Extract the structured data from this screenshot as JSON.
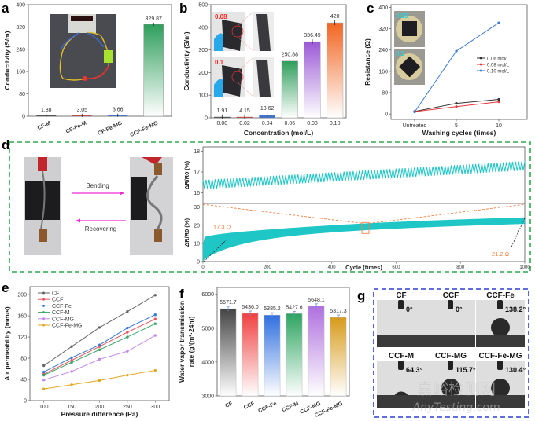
{
  "panel_labels": {
    "a": "a",
    "b": "b",
    "c": "c",
    "d": "d",
    "e": "e",
    "f": "f",
    "g": "g"
  },
  "chart_data": [
    {
      "id": "a",
      "type": "bar",
      "categories": [
        "CF-M",
        "CF-Fe-M",
        "CF-Fe-MG",
        "CCF-Fe-MG"
      ],
      "values": [
        1.88,
        3.05,
        3.66,
        329.87
      ],
      "value_labels": [
        "1.88",
        "3.05",
        "3.66",
        "329.87"
      ],
      "colors": [
        "#555555",
        "#c0504d",
        "#4472c4",
        "#2e9e5b"
      ],
      "ylabel": "Conductivity (S/m)",
      "ylim": [
        0,
        400
      ],
      "yticks": [
        "0",
        "80",
        "160",
        "240",
        "320",
        "400"
      ],
      "inset": "photo of LED circuit"
    },
    {
      "id": "b",
      "type": "bar",
      "categories": [
        "0.00",
        "0.02",
        "0.04",
        "0.06",
        "0.08",
        "0.10"
      ],
      "values": [
        1.91,
        4.15,
        13.62,
        250.88,
        336.49,
        420
      ],
      "value_labels": [
        "1.91",
        "4.15",
        "13.62",
        "250.88",
        "336.49",
        "420"
      ],
      "colors": [
        "#555555",
        "#c0504d",
        "#4472c4",
        "#2e9e5b",
        "#9b59d6",
        "#f26522"
      ],
      "xlabel": "Concentration (mol/L)",
      "ylabel": "Conductivity (S/m)",
      "ylim": [
        0,
        500
      ],
      "yticks": [
        "0",
        "100",
        "200",
        "300",
        "400",
        "500"
      ],
      "inset_labels": [
        "0.08",
        "0.1"
      ]
    },
    {
      "id": "c",
      "type": "line",
      "categories": [
        "Untreated",
        "5",
        "10"
      ],
      "series": [
        {
          "name": "0.06 mol/L",
          "values": [
            10,
            40,
            55
          ],
          "color": "#333333"
        },
        {
          "name": "0.08 mol/L",
          "values": [
            9,
            28,
            46
          ],
          "color": "#e8383d"
        },
        {
          "name": "0.10 mol/L",
          "values": [
            8,
            236,
            342
          ],
          "color": "#3a7bd5"
        }
      ],
      "xlabel": "Washing cycles (times)",
      "ylabel": "Resistance (Ω)",
      "ylim": [
        -20,
        410
      ],
      "yticks": [
        "0",
        "80",
        "160",
        "240",
        "320",
        "400"
      ],
      "inset_labels": [
        "0.08",
        "0.1"
      ]
    },
    {
      "id": "d",
      "type": "line",
      "bend_label": "Bending",
      "recover_label": "Recovering",
      "top": {
        "ylabel": "ΔR/R0 (%)",
        "ylim": [
          15.5,
          18.2
        ],
        "yticks": [
          "16",
          "17",
          "18"
        ],
        "start": 16.4,
        "end": 17.3
      },
      "bottom": {
        "ylabel": "ΔR/R0 (%)",
        "ylim": [
          0,
          32
        ],
        "yticks": [
          "0",
          "10",
          "20",
          "30"
        ]
      },
      "xlabel": "Cycle (times)",
      "xlim": [
        0,
        1000
      ],
      "xticks": [
        "0",
        "200",
        "400",
        "600",
        "800",
        "1000"
      ],
      "annotations": [
        "17.3 Ω",
        "21.2 Ω"
      ],
      "color": "#1fc6c6"
    },
    {
      "id": "e",
      "type": "line",
      "x": [
        100,
        150,
        200,
        250,
        300
      ],
      "series": [
        {
          "name": "CF",
          "values": [
            66,
            102,
            138,
            168,
            199
          ],
          "color": "#666666"
        },
        {
          "name": "CCF",
          "values": [
            50,
            76,
            102,
            129,
            154
          ],
          "color": "#e8585d"
        },
        {
          "name": "CCF-Fe",
          "values": [
            54,
            81,
            105,
            137,
            162
          ],
          "color": "#3a7bd5"
        },
        {
          "name": "CCF-M",
          "values": [
            48,
            72,
            96,
            120,
            145
          ],
          "color": "#3aa569"
        },
        {
          "name": "CCF-MG",
          "values": [
            39,
            55,
            78,
            93,
            123
          ],
          "color": "#c08ae8"
        },
        {
          "name": "CCF-Fe-MG",
          "values": [
            22,
            30,
            38,
            48,
            57
          ],
          "color": "#e0a820"
        }
      ],
      "xlabel": "Pressure difference (Pa)",
      "ylabel": "Air permeability (mm/s)",
      "ylim": [
        0,
        215
      ],
      "xlim": [
        75,
        325
      ],
      "yticks": [
        "0",
        "40",
        "80",
        "120",
        "160",
        "200"
      ],
      "xticks": [
        "100",
        "150",
        "200",
        "250",
        "300"
      ]
    },
    {
      "id": "f",
      "type": "bar",
      "categories": [
        "CF",
        "CCF",
        "CCF-Fe",
        "CCF-M",
        "CCF-MG",
        "CCF-Fe-MG"
      ],
      "values": [
        5571.7,
        5436.0,
        5385.2,
        5427.6,
        5648.1,
        5317.3
      ],
      "value_labels": [
        "5571.7",
        "5436.0",
        "5385.2",
        "5427.6",
        "5648.1",
        "5317.3"
      ],
      "colors": [
        "#444444",
        "#f04040",
        "#2f6fe0",
        "#2ea460",
        "#b070e0",
        "#d89a1a"
      ],
      "ylabel_line1": "Water vapor transmission",
      "ylabel_line2": "rate (g/(m²·24h))",
      "ylim": [
        3000,
        6200
      ],
      "yticks": [
        "3000",
        "4000",
        "5000",
        "6000"
      ]
    },
    {
      "id": "g",
      "type": "table",
      "samples": [
        {
          "name": "CF",
          "angle": "0°",
          "deg": 0
        },
        {
          "name": "CCF",
          "angle": "0°",
          "deg": 0
        },
        {
          "name": "CCF-Fe",
          "angle": "138.2°",
          "deg": 138.2
        },
        {
          "name": "CCF-M",
          "angle": "64.3°",
          "deg": 64.3
        },
        {
          "name": "CCF-MG",
          "angle": "115.7°",
          "deg": 115.7
        },
        {
          "name": "CCF-Fe-MG",
          "angle": "130.4°",
          "deg": 130.4
        }
      ]
    }
  ],
  "watermark": {
    "line1": "嘉峪检测网",
    "line2": "AnyTesting.com"
  }
}
